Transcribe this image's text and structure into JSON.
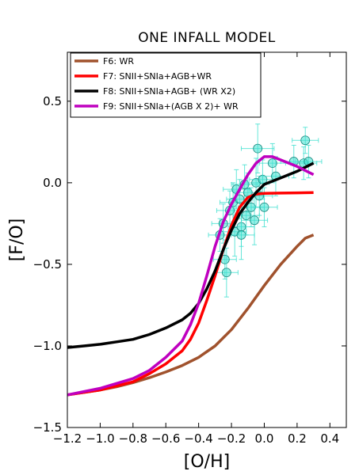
{
  "chart_data": {
    "type": "line",
    "title": "ONE INFALL MODEL",
    "xlabel": "[O/H]",
    "ylabel": "[F/O]",
    "xlim": [
      -1.2,
      0.5
    ],
    "ylim": [
      -1.5,
      0.8
    ],
    "xticks": [
      -1.2,
      -1.0,
      -0.8,
      -0.6,
      -0.4,
      -0.2,
      0.0,
      0.2,
      0.4
    ],
    "xtick_labels": [
      "−1.2",
      "−1.0",
      "−0.8",
      "−0.6",
      "−0.4",
      "−0.2",
      "0.0",
      "0.2",
      "0.4"
    ],
    "yticks": [
      -1.5,
      -1.0,
      -0.5,
      0.0,
      0.5
    ],
    "ytick_labels": [
      "−1.5",
      "−1.0",
      "−0.5",
      "0.0",
      "0.5"
    ],
    "grid": false,
    "legend_position": "top-left",
    "series": [
      {
        "name": "F6: WR",
        "color": "#a0522d",
        "x": [
          -1.2,
          -1.1,
          -1.0,
          -0.9,
          -0.8,
          -0.7,
          -0.6,
          -0.5,
          -0.4,
          -0.3,
          -0.2,
          -0.1,
          0.0,
          0.1,
          0.2,
          0.25,
          0.3
        ],
        "y": [
          -1.3,
          -1.285,
          -1.27,
          -1.25,
          -1.225,
          -1.195,
          -1.16,
          -1.12,
          -1.07,
          -1.0,
          -0.9,
          -0.77,
          -0.63,
          -0.5,
          -0.39,
          -0.34,
          -0.32
        ]
      },
      {
        "name": "F7: SNII+SNIa+AGB+WR",
        "color": "#ff0000",
        "x": [
          -1.2,
          -1.0,
          -0.8,
          -0.7,
          -0.6,
          -0.5,
          -0.45,
          -0.4,
          -0.35,
          -0.3,
          -0.25,
          -0.2,
          -0.15,
          -0.1,
          -0.05,
          0.0,
          0.1,
          0.2,
          0.3
        ],
        "y": [
          -1.3,
          -1.27,
          -1.22,
          -1.17,
          -1.11,
          -1.03,
          -0.96,
          -0.86,
          -0.72,
          -0.57,
          -0.41,
          -0.26,
          -0.15,
          -0.09,
          -0.07,
          -0.065,
          -0.063,
          -0.062,
          -0.06
        ]
      },
      {
        "name": "F8: SNII+SNIa+AGB+ (WR X2)",
        "color": "#000000",
        "x": [
          -1.2,
          -1.1,
          -1.0,
          -0.9,
          -0.8,
          -0.7,
          -0.6,
          -0.5,
          -0.45,
          -0.4,
          -0.35,
          -0.3,
          -0.25,
          -0.2,
          -0.15,
          -0.1,
          -0.05,
          0.0,
          0.1,
          0.2,
          0.3
        ],
        "y": [
          -1.01,
          -1.0,
          -0.99,
          -0.975,
          -0.96,
          -0.93,
          -0.89,
          -0.84,
          -0.8,
          -0.74,
          -0.65,
          -0.54,
          -0.41,
          -0.29,
          -0.19,
          -0.12,
          -0.06,
          -0.01,
          0.03,
          0.07,
          0.12
        ]
      },
      {
        "name": "F9: SNII+SNIa+(AGB X 2)+ WR",
        "color": "#bf00bf",
        "x": [
          -1.2,
          -1.0,
          -0.8,
          -0.7,
          -0.6,
          -0.5,
          -0.45,
          -0.4,
          -0.35,
          -0.3,
          -0.25,
          -0.2,
          -0.15,
          -0.1,
          -0.05,
          0.0,
          0.05,
          0.1,
          0.2,
          0.3
        ],
        "y": [
          -1.3,
          -1.26,
          -1.2,
          -1.15,
          -1.07,
          -0.97,
          -0.87,
          -0.74,
          -0.57,
          -0.39,
          -0.24,
          -0.13,
          -0.04,
          0.05,
          0.12,
          0.16,
          0.16,
          0.14,
          0.1,
          0.05
        ]
      }
    ],
    "observations": {
      "marker_color": "#40e0d0",
      "points": [
        {
          "x": -0.27,
          "y": -0.32,
          "xerr": 0.07,
          "yerr": 0.1
        },
        {
          "x": -0.25,
          "y": -0.25,
          "xerr": 0.07,
          "yerr": 0.12
        },
        {
          "x": -0.24,
          "y": -0.47,
          "xerr": 0.07,
          "yerr": 0.12
        },
        {
          "x": -0.23,
          "y": -0.55,
          "xerr": 0.07,
          "yerr": 0.15
        },
        {
          "x": -0.21,
          "y": -0.17,
          "xerr": 0.08,
          "yerr": 0.12
        },
        {
          "x": -0.19,
          "y": -0.12,
          "xerr": 0.08,
          "yerr": 0.12
        },
        {
          "x": -0.18,
          "y": -0.3,
          "xerr": 0.07,
          "yerr": 0.15
        },
        {
          "x": -0.17,
          "y": -0.04,
          "xerr": 0.08,
          "yerr": 0.12
        },
        {
          "x": -0.15,
          "y": -0.1,
          "xerr": 0.08,
          "yerr": 0.12
        },
        {
          "x": -0.14,
          "y": -0.27,
          "xerr": 0.08,
          "yerr": 0.12
        },
        {
          "x": -0.14,
          "y": -0.32,
          "xerr": 0.08,
          "yerr": 0.15
        },
        {
          "x": -0.12,
          "y": -0.01,
          "xerr": 0.08,
          "yerr": 0.12
        },
        {
          "x": -0.11,
          "y": -0.2,
          "xerr": 0.08,
          "yerr": 0.12
        },
        {
          "x": -0.1,
          "y": -0.06,
          "xerr": 0.08,
          "yerr": 0.12
        },
        {
          "x": -0.08,
          "y": -0.15,
          "xerr": 0.08,
          "yerr": 0.12
        },
        {
          "x": -0.06,
          "y": -0.23,
          "xerr": 0.08,
          "yerr": 0.15
        },
        {
          "x": -0.05,
          "y": 0.0,
          "xerr": 0.08,
          "yerr": 0.15
        },
        {
          "x": -0.04,
          "y": 0.21,
          "xerr": 0.1,
          "yerr": 0.15
        },
        {
          "x": -0.03,
          "y": -0.08,
          "xerr": 0.08,
          "yerr": 0.12
        },
        {
          "x": -0.01,
          "y": 0.02,
          "xerr": 0.08,
          "yerr": 0.12
        },
        {
          "x": 0.0,
          "y": -0.15,
          "xerr": 0.08,
          "yerr": 0.12
        },
        {
          "x": 0.05,
          "y": 0.12,
          "xerr": 0.08,
          "yerr": 0.12
        },
        {
          "x": 0.07,
          "y": 0.04,
          "xerr": 0.08,
          "yerr": 0.12
        },
        {
          "x": 0.18,
          "y": 0.13,
          "xerr": 0.08,
          "yerr": 0.1
        },
        {
          "x": 0.24,
          "y": 0.12,
          "xerr": 0.08,
          "yerr": 0.1
        },
        {
          "x": 0.25,
          "y": 0.26,
          "xerr": 0.08,
          "yerr": 0.08
        },
        {
          "x": 0.27,
          "y": 0.13,
          "xerr": 0.08,
          "yerr": 0.1
        }
      ]
    }
  }
}
